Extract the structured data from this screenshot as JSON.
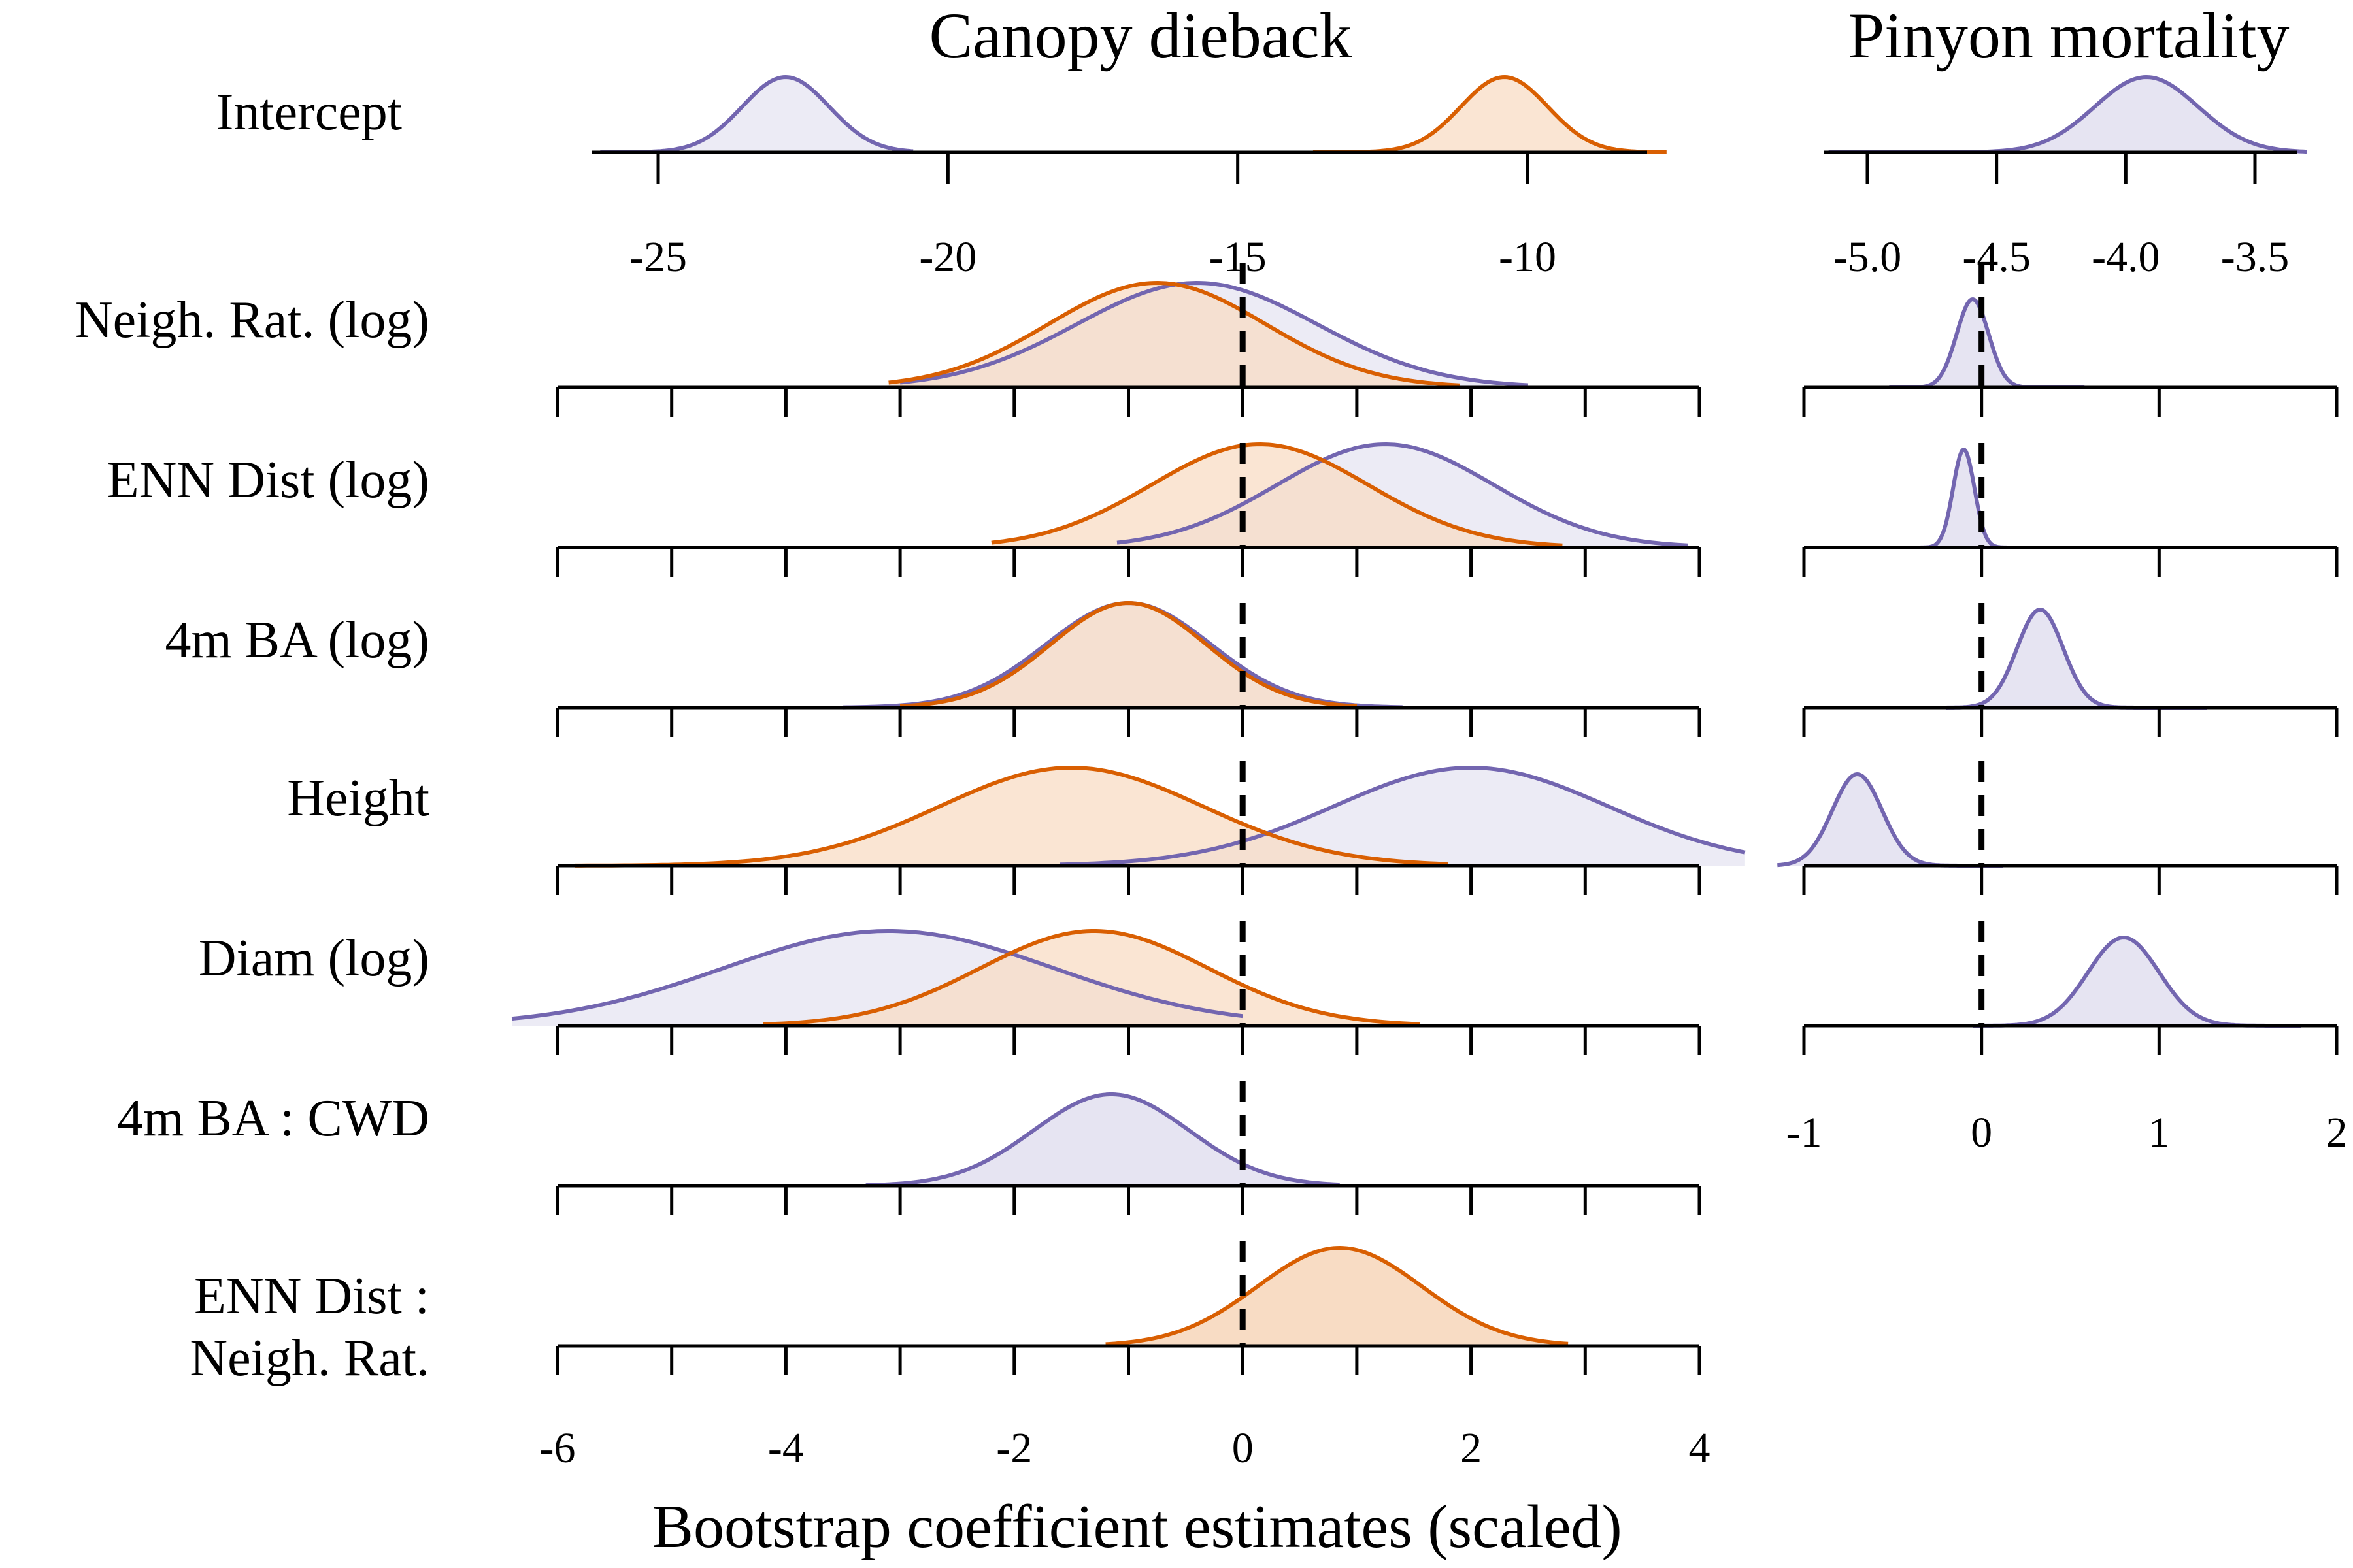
{
  "colors": {
    "purple_line": "#7366B0",
    "purple_fill": "#E6E4F2",
    "orange_line": "#D95F02",
    "orange_fill": "#F8DCC4",
    "overlap_fill": "#D8C2C0"
  },
  "chart_data": {
    "type": "density-ridgeline",
    "x_title": "Bootstrap coefficient estimates (scaled)",
    "panels": [
      {
        "id": "canopy",
        "title": "Canopy dieback",
        "main_axis": {
          "xlim": [
            -6,
            4
          ],
          "ticks": [
            "-6",
            "-4",
            "-2",
            "0",
            "2",
            "4"
          ]
        },
        "intercept_axis": {
          "xlim": [
            -25,
            -10
          ],
          "ticks": [
            "-25",
            "-20",
            "-15",
            "-10"
          ]
        },
        "rows": [
          {
            "label": "Intercept",
            "axis": "intercept",
            "series": [
              {
                "color": "purple",
                "mean": -22.8,
                "sd": 0.75,
                "range": [
                  -26,
                  -20.6
                ]
              },
              {
                "color": "orange",
                "mean": -10.4,
                "sd": 0.75,
                "range": [
                  -13.7,
                  -7.6
                ]
              }
            ]
          },
          {
            "label": "Neigh. Rat. (log)",
            "axis": "main",
            "series": [
              {
                "color": "purple",
                "mean": -0.4,
                "sd": 1.05,
                "range": [
                  -3.0,
                  2.5
                ]
              },
              {
                "color": "orange",
                "mean": -0.75,
                "sd": 0.95,
                "range": [
                  -3.1,
                  1.9
                ]
              }
            ]
          },
          {
            "label": "ENN Dist (log)",
            "axis": "main",
            "series": [
              {
                "color": "purple",
                "mean": 1.25,
                "sd": 0.95,
                "range": [
                  -1.1,
                  3.9
                ]
              },
              {
                "color": "orange",
                "mean": 0.15,
                "sd": 0.95,
                "range": [
                  -2.2,
                  2.8
                ]
              }
            ]
          },
          {
            "label": "4m BA (log)",
            "axis": "main",
            "series": [
              {
                "color": "purple",
                "mean": -1.0,
                "sd": 0.72,
                "range": [
                  -3.5,
                  1.4
                ]
              },
              {
                "color": "orange",
                "mean": -1.0,
                "sd": 0.68,
                "range": [
                  -3.0,
                  1.0
                ]
              }
            ]
          },
          {
            "label": "Height",
            "axis": "main",
            "series": [
              {
                "color": "purple",
                "mean": 2.0,
                "sd": 1.2,
                "range": [
                  -1.6,
                  4.4
                ]
              },
              {
                "color": "orange",
                "mean": -1.5,
                "sd": 1.15,
                "range": [
                  -5.85,
                  1.8
                ]
              }
            ]
          },
          {
            "label": "Diam (log)",
            "axis": "main",
            "series": [
              {
                "color": "purple",
                "mean": -3.1,
                "sd": 1.45,
                "range": [
                  -6.4,
                  0
                ]
              },
              {
                "color": "orange",
                "mean": -1.3,
                "sd": 1.0,
                "range": [
                  -4.2,
                  1.55
                ]
              }
            ]
          },
          {
            "label": "4m BA : CWD",
            "axis": "main",
            "series": [
              {
                "color": "purple",
                "mean": -1.15,
                "sd": 0.68,
                "range": [
                  -3.3,
                  0.85
                ]
              }
            ]
          },
          {
            "label_lines": [
              "ENN Dist :",
              "Neigh. Rat."
            ],
            "axis": "main",
            "series": [
              {
                "color": "orange",
                "mean": 0.85,
                "sd": 0.72,
                "range": [
                  -1.2,
                  2.85
                ]
              }
            ]
          }
        ]
      },
      {
        "id": "pinyon",
        "title": "Pinyon mortality",
        "main_axis": {
          "xlim": [
            -1,
            2
          ],
          "ticks": [
            "-1",
            "0",
            "1",
            "2"
          ]
        },
        "intercept_axis": {
          "xlim": [
            -5.0,
            -3.5
          ],
          "ticks": [
            "-5.0",
            "-4.5",
            "-4.0",
            "-3.5"
          ]
        },
        "rows": [
          {
            "label": "Intercept",
            "axis": "intercept",
            "series": [
              {
                "color": "purple",
                "mean": -3.92,
                "sd": 0.2,
                "range": [
                  -5.15,
                  -3.3
                ]
              }
            ]
          },
          {
            "label": "Neigh. Rat. (log)",
            "axis": "main",
            "series": [
              {
                "color": "purple",
                "mean": -0.05,
                "sd": 0.09,
                "range": [
                  -0.52,
                  0.58
                ]
              }
            ]
          },
          {
            "label": "ENN Dist (log)",
            "axis": "main",
            "series": [
              {
                "color": "purple",
                "mean": -0.1,
                "sd": 0.06,
                "range": [
                  -0.56,
                  0.32
                ]
              }
            ]
          },
          {
            "label": "4m BA (log)",
            "axis": "main",
            "series": [
              {
                "color": "purple",
                "mean": 0.33,
                "sd": 0.13,
                "range": [
                  -0.2,
                  1.27
                ]
              }
            ]
          },
          {
            "label": "Height",
            "axis": "main",
            "series": [
              {
                "color": "purple",
                "mean": -0.7,
                "sd": 0.14,
                "range": [
                  -1.15,
                  0.12
                ]
              }
            ]
          },
          {
            "label": "Diam (log)",
            "axis": "main",
            "series": [
              {
                "color": "purple",
                "mean": 0.8,
                "sd": 0.2,
                "range": [
                  -0.05,
                  1.8
                ]
              }
            ]
          }
        ]
      }
    ]
  }
}
